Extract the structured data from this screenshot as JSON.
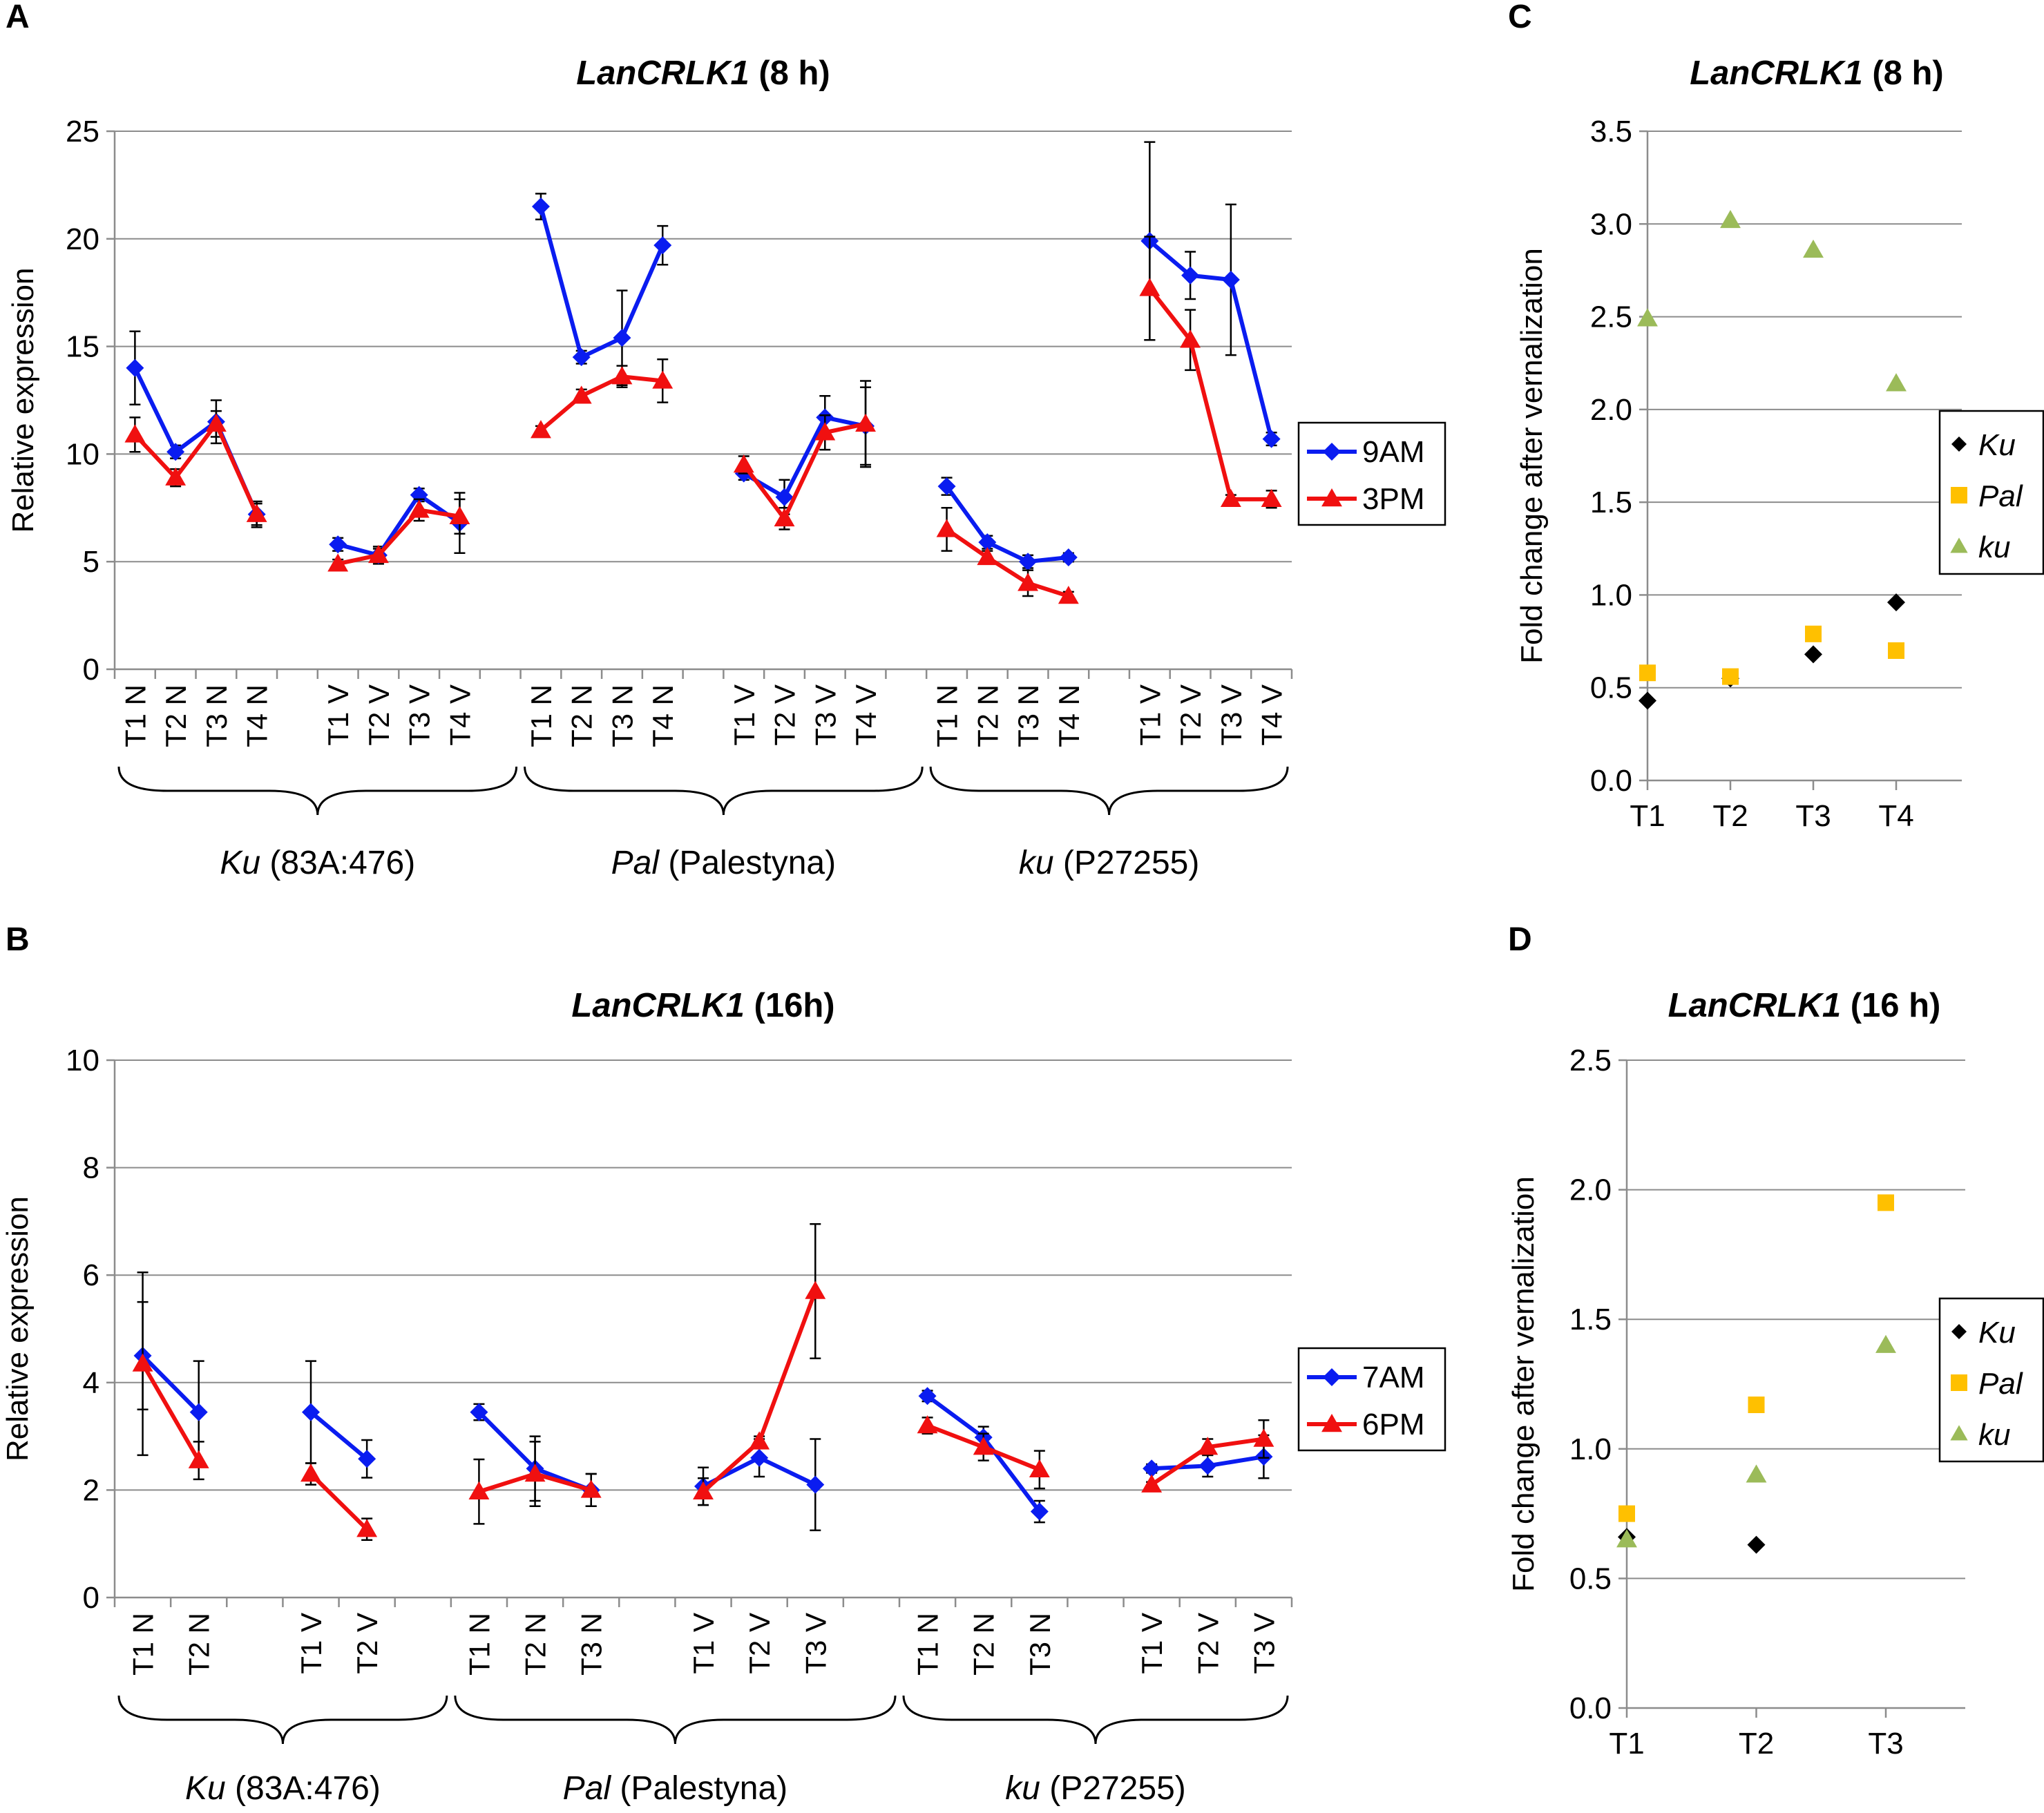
{
  "chart_data": [
    {
      "panel": "A",
      "type": "line",
      "title": "LanCRLK1",
      "title_suffix": " (8 h)",
      "ylabel": "Relative expression",
      "ylim": [
        0,
        25
      ],
      "yticks": [
        0,
        5,
        10,
        15,
        20,
        25
      ],
      "groups": [
        {
          "name": "Ku",
          "detail": " (83A:476)",
          "subgroups": [
            {
              "labels": [
                "T1 N",
                "T2 N",
                "T3 N",
                "T4 N"
              ]
            },
            {
              "labels": [
                "T1 V",
                "T2 V",
                "T3 V",
                "T4 V"
              ]
            }
          ]
        },
        {
          "name": "Pal",
          "detail": " (Palestyna)",
          "subgroups": [
            {
              "labels": [
                "T1 N",
                "T2 N",
                "T3 N",
                "T4 N"
              ]
            },
            {
              "labels": [
                "T1 V",
                "T2 V",
                "T3 V",
                "T4 V"
              ]
            }
          ]
        },
        {
          "name": "ku",
          "detail": " (P27255)",
          "subgroups": [
            {
              "labels": [
                "T1 N",
                "T2 N",
                "T3 N",
                "T4 N"
              ]
            },
            {
              "labels": [
                "T1 V",
                "T2 V",
                "T3 V",
                "T4 V"
              ]
            }
          ]
        }
      ],
      "series": [
        {
          "name": "9AM",
          "color": "#0a1cf0",
          "marker": "diamond",
          "segments": [
            {
              "values": [
                14.0,
                10.1,
                11.5,
                7.2
              ],
              "errors": [
                1.7,
                0.3,
                1.0,
                0.6
              ]
            },
            {
              "values": [
                5.8,
                5.3,
                8.1,
                6.8
              ],
              "errors": [
                0.3,
                0.4,
                0.3,
                1.4
              ]
            },
            {
              "values": [
                21.5,
                14.5,
                15.4,
                19.7
              ],
              "errors": [
                0.6,
                0.3,
                2.2,
                0.9
              ]
            },
            {
              "values": [
                9.1,
                8.0,
                11.7,
                11.3
              ],
              "errors": [
                0.3,
                0.8,
                1.0,
                1.8
              ]
            },
            {
              "values": [
                8.5,
                5.9,
                5.0,
                5.2
              ],
              "errors": [
                0.4,
                0.3,
                0.3,
                0.2
              ]
            },
            {
              "values": [
                19.9,
                18.3,
                18.1,
                10.7
              ],
              "errors": [
                4.6,
                1.1,
                3.5,
                0.3
              ]
            }
          ]
        },
        {
          "name": "3PM",
          "color": "#f01010",
          "marker": "triangle",
          "segments": [
            {
              "values": [
                10.9,
                8.9,
                11.4,
                7.2
              ],
              "errors": [
                0.8,
                0.4,
                0.6,
                0.5
              ]
            },
            {
              "values": [
                4.9,
                5.3,
                7.4,
                7.1
              ],
              "errors": [
                0.2,
                0.3,
                0.5,
                0.8
              ]
            },
            {
              "values": [
                11.1,
                12.7,
                13.6,
                13.4
              ],
              "errors": [
                0.2,
                0.3,
                0.5,
                1.0
              ]
            },
            {
              "values": [
                9.5,
                7.0,
                11.0,
                11.4
              ],
              "errors": [
                0.4,
                0.5,
                0.8,
                2.0
              ]
            },
            {
              "values": [
                6.5,
                5.2,
                4.0,
                3.4
              ],
              "errors": [
                1.0,
                0.3,
                0.6,
                0.2
              ]
            },
            {
              "values": [
                17.7,
                15.3,
                7.9,
                7.9
              ],
              "errors": [
                2.4,
                1.4,
                0.2,
                0.4
              ]
            }
          ]
        }
      ]
    },
    {
      "panel": "B",
      "type": "line",
      "title": "LanCRLK1",
      "title_suffix": " (16h)",
      "ylabel": "Relative expression",
      "ylim": [
        0,
        10
      ],
      "yticks": [
        0,
        2,
        4,
        6,
        8,
        10
      ],
      "groups": [
        {
          "name": "Ku",
          "detail": " (83A:476)",
          "subgroups": [
            {
              "labels": [
                "T1 N",
                "T2 N"
              ]
            },
            {
              "labels": [
                "T1 V",
                "T2 V"
              ]
            }
          ]
        },
        {
          "name": "Pal",
          "detail": " (Palestyna)",
          "subgroups": [
            {
              "labels": [
                "T1 N",
                "T2 N",
                "T3 N"
              ]
            },
            {
              "labels": [
                "T1 V",
                "T2 V",
                "T3 V"
              ]
            }
          ]
        },
        {
          "name": "ku",
          "detail": " (P27255)",
          "subgroups": [
            {
              "labels": [
                "T1 N",
                "T2 N",
                "T3 N"
              ]
            },
            {
              "labels": [
                "T1 V",
                "T2 V",
                "T3 V"
              ]
            }
          ]
        }
      ],
      "series": [
        {
          "name": "7AM",
          "color": "#0a1cf0",
          "marker": "diamond",
          "segments": [
            {
              "values": [
                4.5,
                3.45
              ],
              "errors": [
                1.0,
                0.95
              ]
            },
            {
              "values": [
                3.45,
                2.58
              ],
              "errors": [
                0.95,
                0.35
              ]
            },
            {
              "values": [
                3.45,
                2.4,
                2.0
              ],
              "errors": [
                0.15,
                0.6,
                0.3
              ]
            },
            {
              "values": [
                2.07,
                2.6,
                2.1
              ],
              "errors": [
                0.35,
                0.35,
                0.85
              ]
            },
            {
              "values": [
                3.75,
                2.98,
                1.6
              ],
              "errors": [
                0.1,
                0.2,
                0.2
              ]
            },
            {
              "values": [
                2.4,
                2.45,
                2.62
              ],
              "errors": [
                0.08,
                0.2,
                0.4
              ]
            }
          ]
        },
        {
          "name": "6PM",
          "color": "#f01010",
          "marker": "triangle",
          "segments": [
            {
              "values": [
                4.35,
                2.55
              ],
              "errors": [
                1.7,
                0.35
              ]
            },
            {
              "values": [
                2.3,
                1.27
              ],
              "errors": [
                0.2,
                0.2
              ]
            },
            {
              "values": [
                1.97,
                2.3,
                2.0
              ],
              "errors": [
                0.6,
                0.6,
                0.3
              ]
            },
            {
              "values": [
                1.97,
                2.9,
                5.7
              ],
              "errors": [
                0.25,
                0.1,
                1.25
              ]
            },
            {
              "values": [
                3.2,
                2.8,
                2.38
              ],
              "errors": [
                0.15,
                0.25,
                0.35
              ]
            },
            {
              "values": [
                2.1,
                2.8,
                2.95
              ],
              "errors": [
                0.05,
                0.15,
                0.35
              ]
            }
          ]
        }
      ]
    },
    {
      "panel": "C",
      "type": "scatter",
      "title": "LanCRLK1",
      "title_suffix": " (8 h)",
      "ylabel": "Fold change after vernalization",
      "ylim": [
        0,
        3.5
      ],
      "yticks": [
        "0.0",
        "0.5",
        "1.0",
        "1.5",
        "2.0",
        "2.5",
        "3.0",
        "3.5"
      ],
      "categories": [
        "T1",
        "T2",
        "T3",
        "T4"
      ],
      "series": [
        {
          "name": "Ku",
          "color": "#000000",
          "marker": "diamond",
          "values": [
            0.43,
            0.55,
            0.68,
            0.96
          ]
        },
        {
          "name": "Pal",
          "color": "#ffc000",
          "marker": "square",
          "values": [
            0.58,
            0.56,
            0.79,
            0.7
          ]
        },
        {
          "name": "ku",
          "color": "#9bbb59",
          "marker": "triangle",
          "values": [
            2.49,
            3.02,
            2.86,
            2.14
          ]
        }
      ]
    },
    {
      "panel": "D",
      "type": "scatter",
      "title": "LanCRLK1",
      "title_suffix": " (16 h)",
      "ylabel": "Fold change after vernalization",
      "ylim": [
        0,
        2.5
      ],
      "yticks": [
        "0.0",
        "0.5",
        "1.0",
        "1.5",
        "2.0",
        "2.5"
      ],
      "categories": [
        "T1",
        "T2",
        "T3"
      ],
      "series": [
        {
          "name": "Ku",
          "color": "#000000",
          "marker": "diamond",
          "values": [
            0.66,
            0.63,
            null
          ]
        },
        {
          "name": "Pal",
          "color": "#ffc000",
          "marker": "square",
          "values": [
            0.75,
            1.17,
            1.95
          ]
        },
        {
          "name": "ku",
          "color": "#9bbb59",
          "marker": "triangle",
          "values": [
            0.65,
            0.9,
            1.4
          ]
        }
      ]
    }
  ]
}
